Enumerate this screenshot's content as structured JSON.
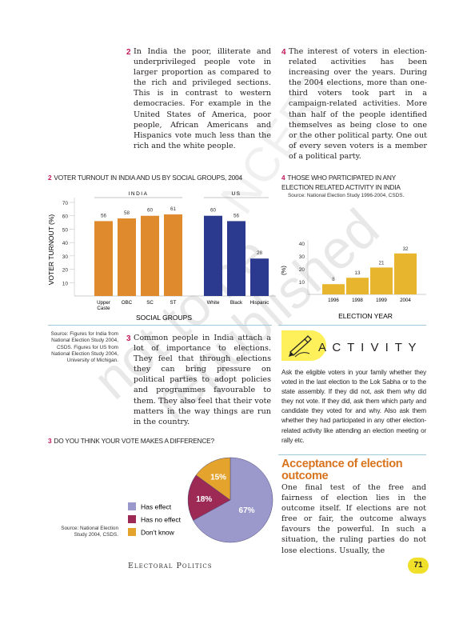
{
  "col_left": {
    "item2_num": "2",
    "item2_text": "In India the poor, illiterate and underprivileged people vote in larger proportion as compared to the rich and privileged sections. This is in contrast to western democracies. For example in the United States of America, poor people, African Americans and Hispanics vote much less than the rich and the white people.",
    "item3_num": "3",
    "item3_text": "Common people in India attach a lot of importance to elections. They feel that through elections they can bring pressure on political parties to adopt policies and programmes favourable to them. They also feel that their vote matters in the way things are run in the country."
  },
  "col_right": {
    "item4_num": "4",
    "item4_text": "The interest of voters in election-related activities has been increasing over the years. During the 2004 elections, more than one-third voters took part in a campaign-related activities. More than half of the people identified themselves as being close to one or the other political party. One out of every seven voters is a member of a political party."
  },
  "chart_turnout_title": {
    "num": "2",
    "text": "VOTER TURNOUT IN INDIA AND US BY SOCIAL GROUPS, 2004"
  },
  "chart_turnout_source": "Source: Figures for India from National Election Study 2004, CSDS. Figures for US from National Election Study 2004, University of Michigan.",
  "chart_participation_title": {
    "num": "4",
    "text": "THOSE WHO PARTICIPATED IN ANY ELECTION RELATED ACTIVITY IN INDIA"
  },
  "chart_participation_source": "Source: National Election Study 1996-2004, CSDS.",
  "chart_vote_title": {
    "num": "3",
    "text": "DO YOU THINK YOUR VOTE MAKES A DIFFERENCE?"
  },
  "chart_vote_source": "Source: National Election Study 2004, CSDS.",
  "chart_data": [
    {
      "type": "bar",
      "title": "VOTER TURNOUT IN INDIA AND US BY SOCIAL GROUPS, 2004",
      "ylabel": "VOTER TURNOUT (%)",
      "xlabel": "SOCIAL GROUPS",
      "ylim": [
        0,
        70
      ],
      "yticks": [
        10,
        20,
        30,
        40,
        50,
        60,
        70
      ],
      "groups": [
        {
          "name": "INDIA",
          "color": "#e08a2e",
          "categories": [
            "Upper Caste",
            "OBC",
            "SC",
            "ST"
          ],
          "values": [
            56,
            58,
            60,
            61
          ]
        },
        {
          "name": "US",
          "color": "#2b3a8f",
          "categories": [
            "White",
            "Black",
            "Hispanic"
          ],
          "values": [
            60,
            56,
            28
          ]
        }
      ]
    },
    {
      "type": "bar",
      "title": "THOSE WHO PARTICIPATED IN ANY ELECTION RELATED ACTIVITY IN INDIA",
      "ylabel": "(%)",
      "xlabel": "ELECTION YEAR",
      "ylim": [
        0,
        40
      ],
      "yticks": [
        10,
        20,
        30,
        40
      ],
      "color": "#e8b52e",
      "categories": [
        "1996",
        "1998",
        "1999",
        "2004"
      ],
      "values": [
        8,
        13,
        21,
        32
      ]
    },
    {
      "type": "pie",
      "title": "DO YOU THINK YOUR VOTE MAKES A DIFFERENCE?",
      "slices": [
        {
          "label": "Has effect",
          "value": 67,
          "display": "67%",
          "color": "#9b98cc"
        },
        {
          "label": "Has no effect",
          "value": 18,
          "display": "18%",
          "color": "#9c2a55"
        },
        {
          "label": "Don't know",
          "value": 15,
          "display": "15%",
          "color": "#e3a32c"
        }
      ]
    }
  ],
  "activity": {
    "heading": "A C T I V I T Y",
    "text": "Ask the eligible voters in your family whether they voted in the last election to the Lok Sabha or to the state assembly. If they did not, ask them why did they not vote. If they did, ask them which party and candidate they voted for and why. Also ask them whether they had participated in any other election-related activity like attending an election meeting or rally etc."
  },
  "section": {
    "heading_line1": "Acceptance of election",
    "heading_line2": "outcome",
    "text": "One final test of the free and fairness of election lies in the outcome itself. If elections are not free or fair, the outcome always favours the powerful. In such a situation, the ruling parties do not lose elections. Usually, the"
  },
  "footer": {
    "running_title": "Electoral Politics",
    "page_number": "71"
  },
  "watermark": {
    "line1": "not to be",
    "line2": "republished",
    "line3": "NCERT"
  },
  "colors": {
    "magenta": "#c2185b",
    "activity_yellow": "#fdf05a",
    "section_orange": "#d8731e",
    "page_badge": "#f1e02a"
  }
}
